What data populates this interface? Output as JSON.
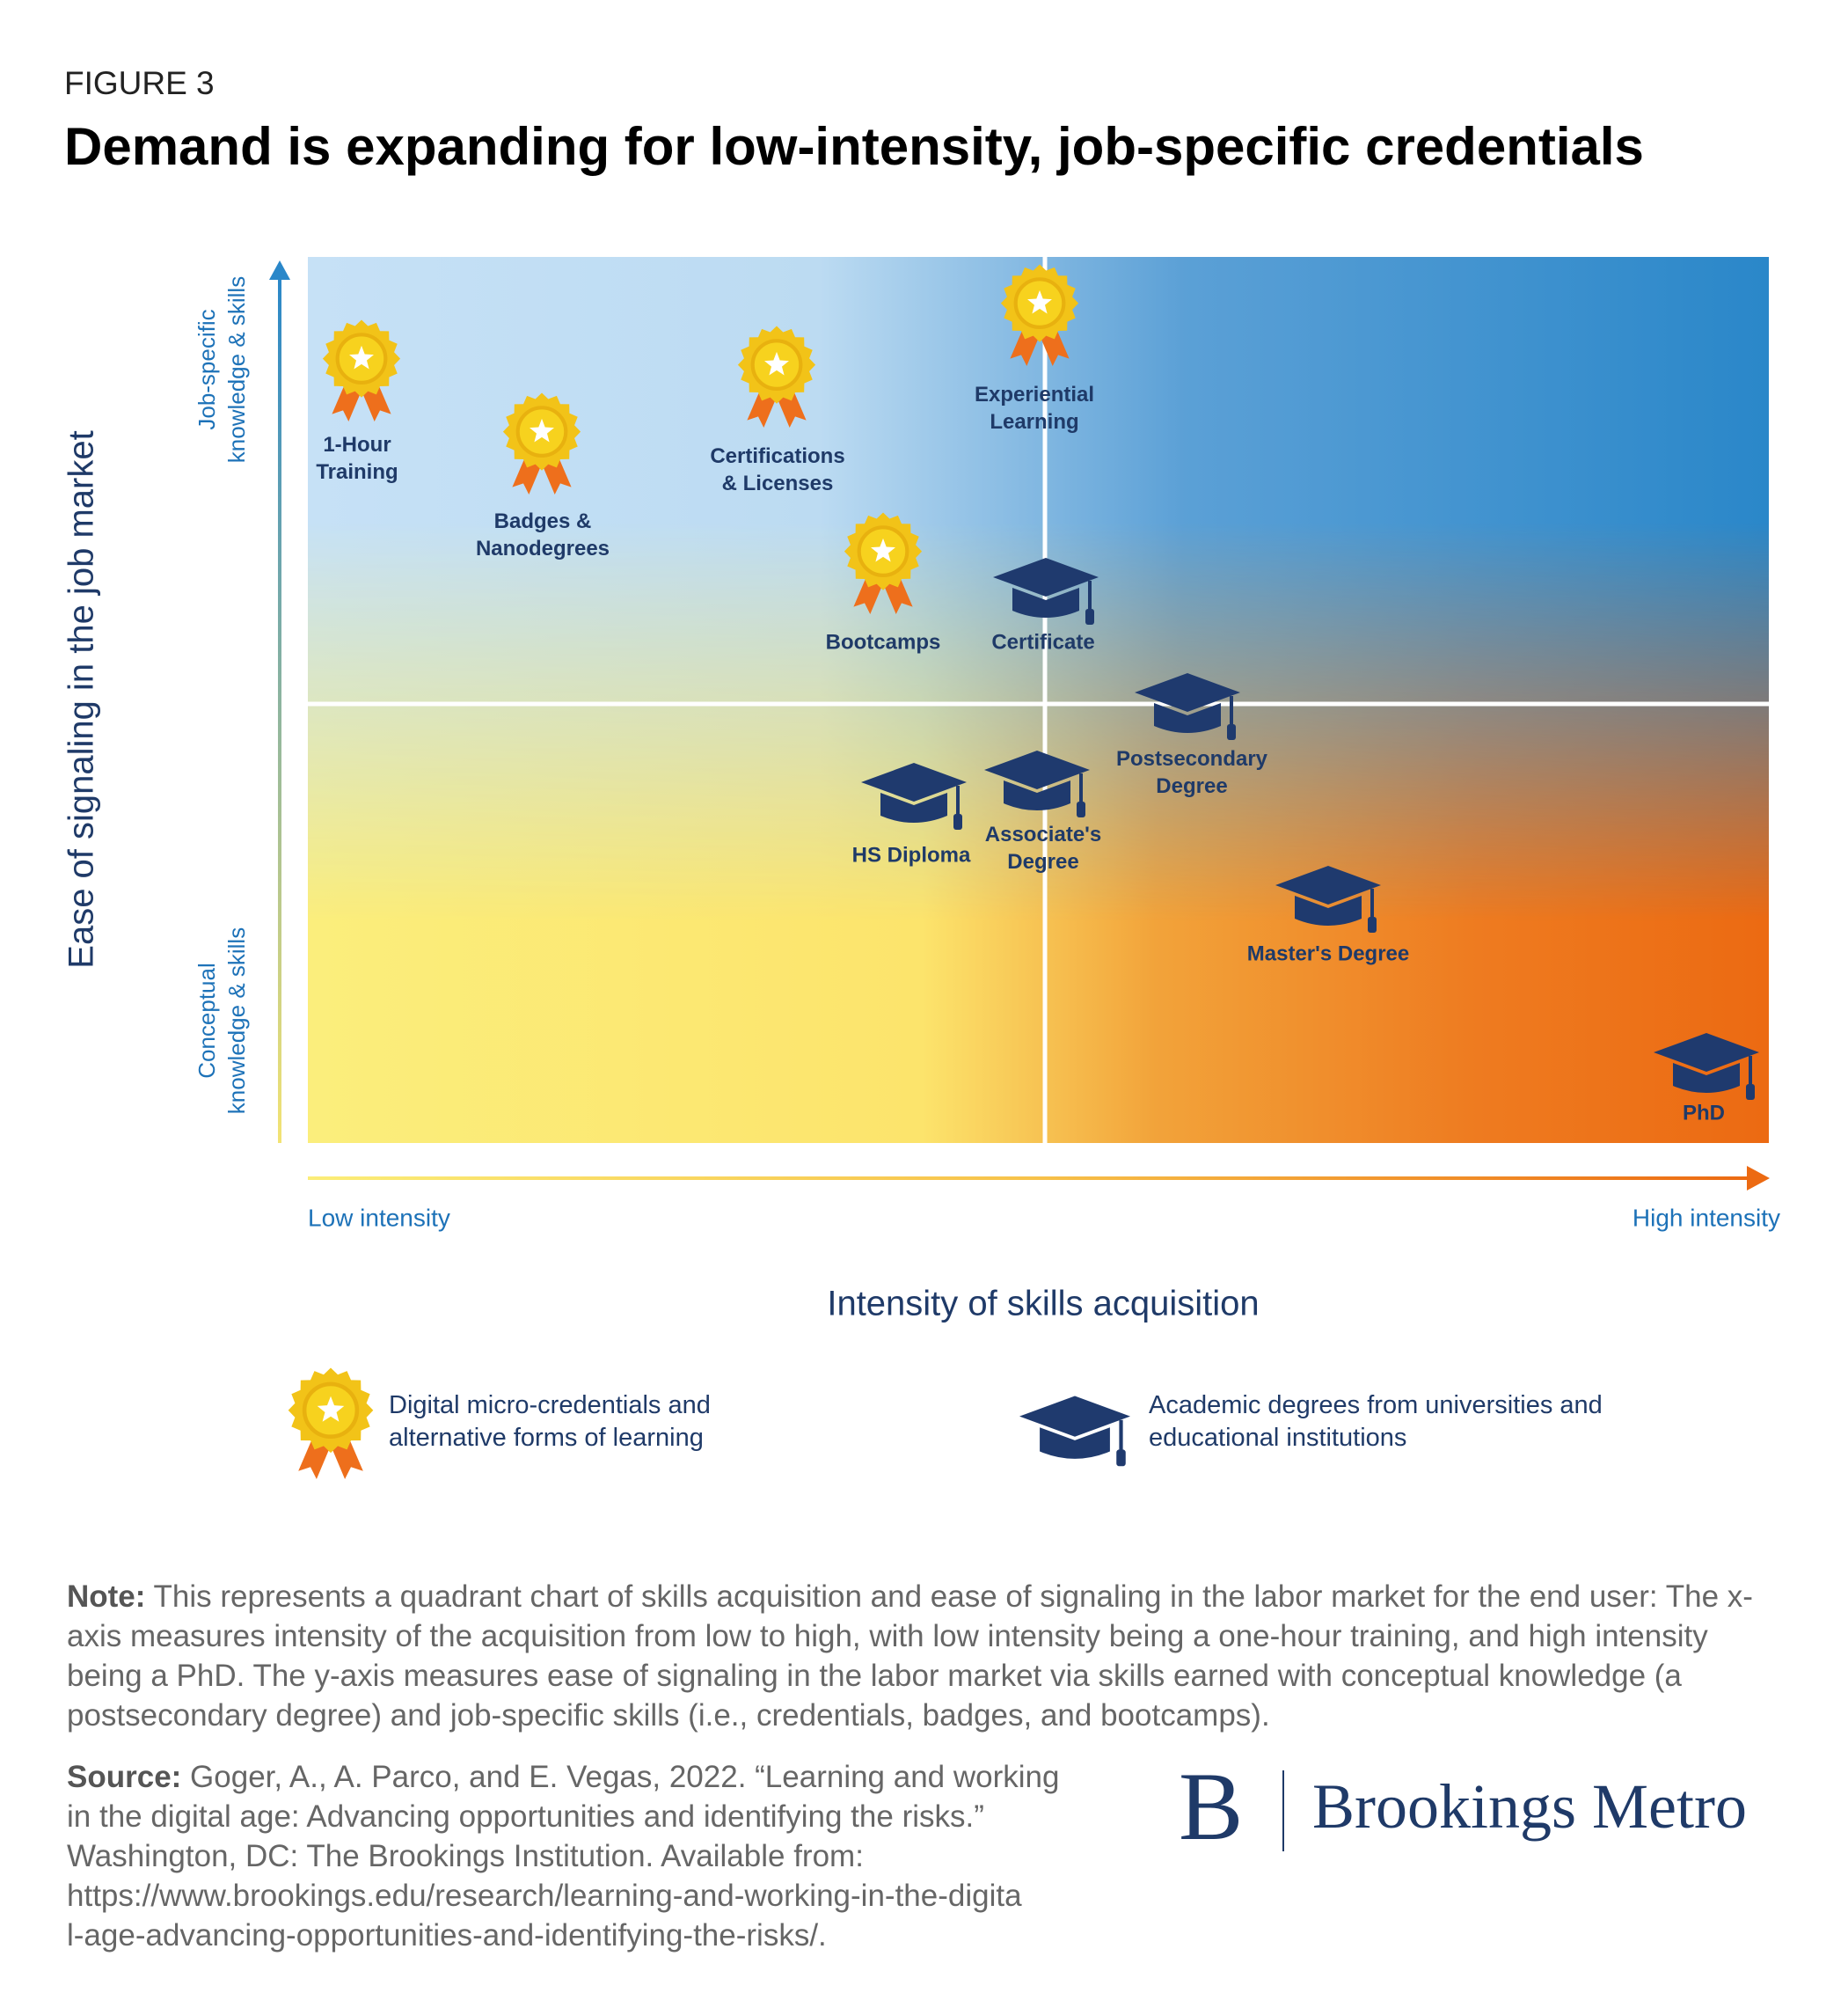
{
  "figure_label": "FIGURE 3",
  "title": "Demand is expanding for low-intensity, job-specific credentials",
  "y_axis": {
    "label": "Ease of signaling in the job market",
    "high": "Job-specific\nknowledge & skills",
    "low": "Conceptual\nknowledge & skills"
  },
  "x_axis": {
    "label": "Intensity of skills acquisition",
    "low": "Low intensity",
    "high": "High intensity"
  },
  "micro_credentials": [
    "1-Hour\nTraining",
    "Badges &\nNanodegrees",
    "Certifications\n& Licenses",
    "Experiential\nLearning",
    "Bootcamps"
  ],
  "degrees": [
    "Certificate",
    "Postsecondary\nDegree",
    "HS Diploma",
    "Associate's\nDegree",
    "Master's Degree",
    "PhD"
  ],
  "legend": [
    "Digital micro-credentials and\nalternative forms of learning",
    "Academic degrees from universities and\neducational institutions"
  ],
  "note": {
    "label": "Note:",
    "text": "This represents a quadrant chart of skills acquisition and ease of signaling in the labor market for the end user: The x-axis measures intensity of the acquisition from low to high, with low intensity being a one-hour training, and high intensity being a PhD. The y-axis measures ease of signaling in the labor market via skills earned with conceptual knowledge (a postsecondary degree) and job-specific skills (i.e., credentials, badges, and bootcamps)."
  },
  "source": {
    "label": "Source:",
    "text": "Goger, A., A. Parco, and E. Vegas, 2022. “Learning and working\nin the digital age: Advancing opportunities and identifying the risks.”\nWashington, DC: The Brookings Institution. Available from:\nhttps://www.brookings.edu/research/learning-and-working-in-the-digita\nl-age-advancing-opportunities-and-identifying-the-risks/."
  },
  "logo": {
    "letter": "B",
    "name": "Brookings Metro"
  }
}
